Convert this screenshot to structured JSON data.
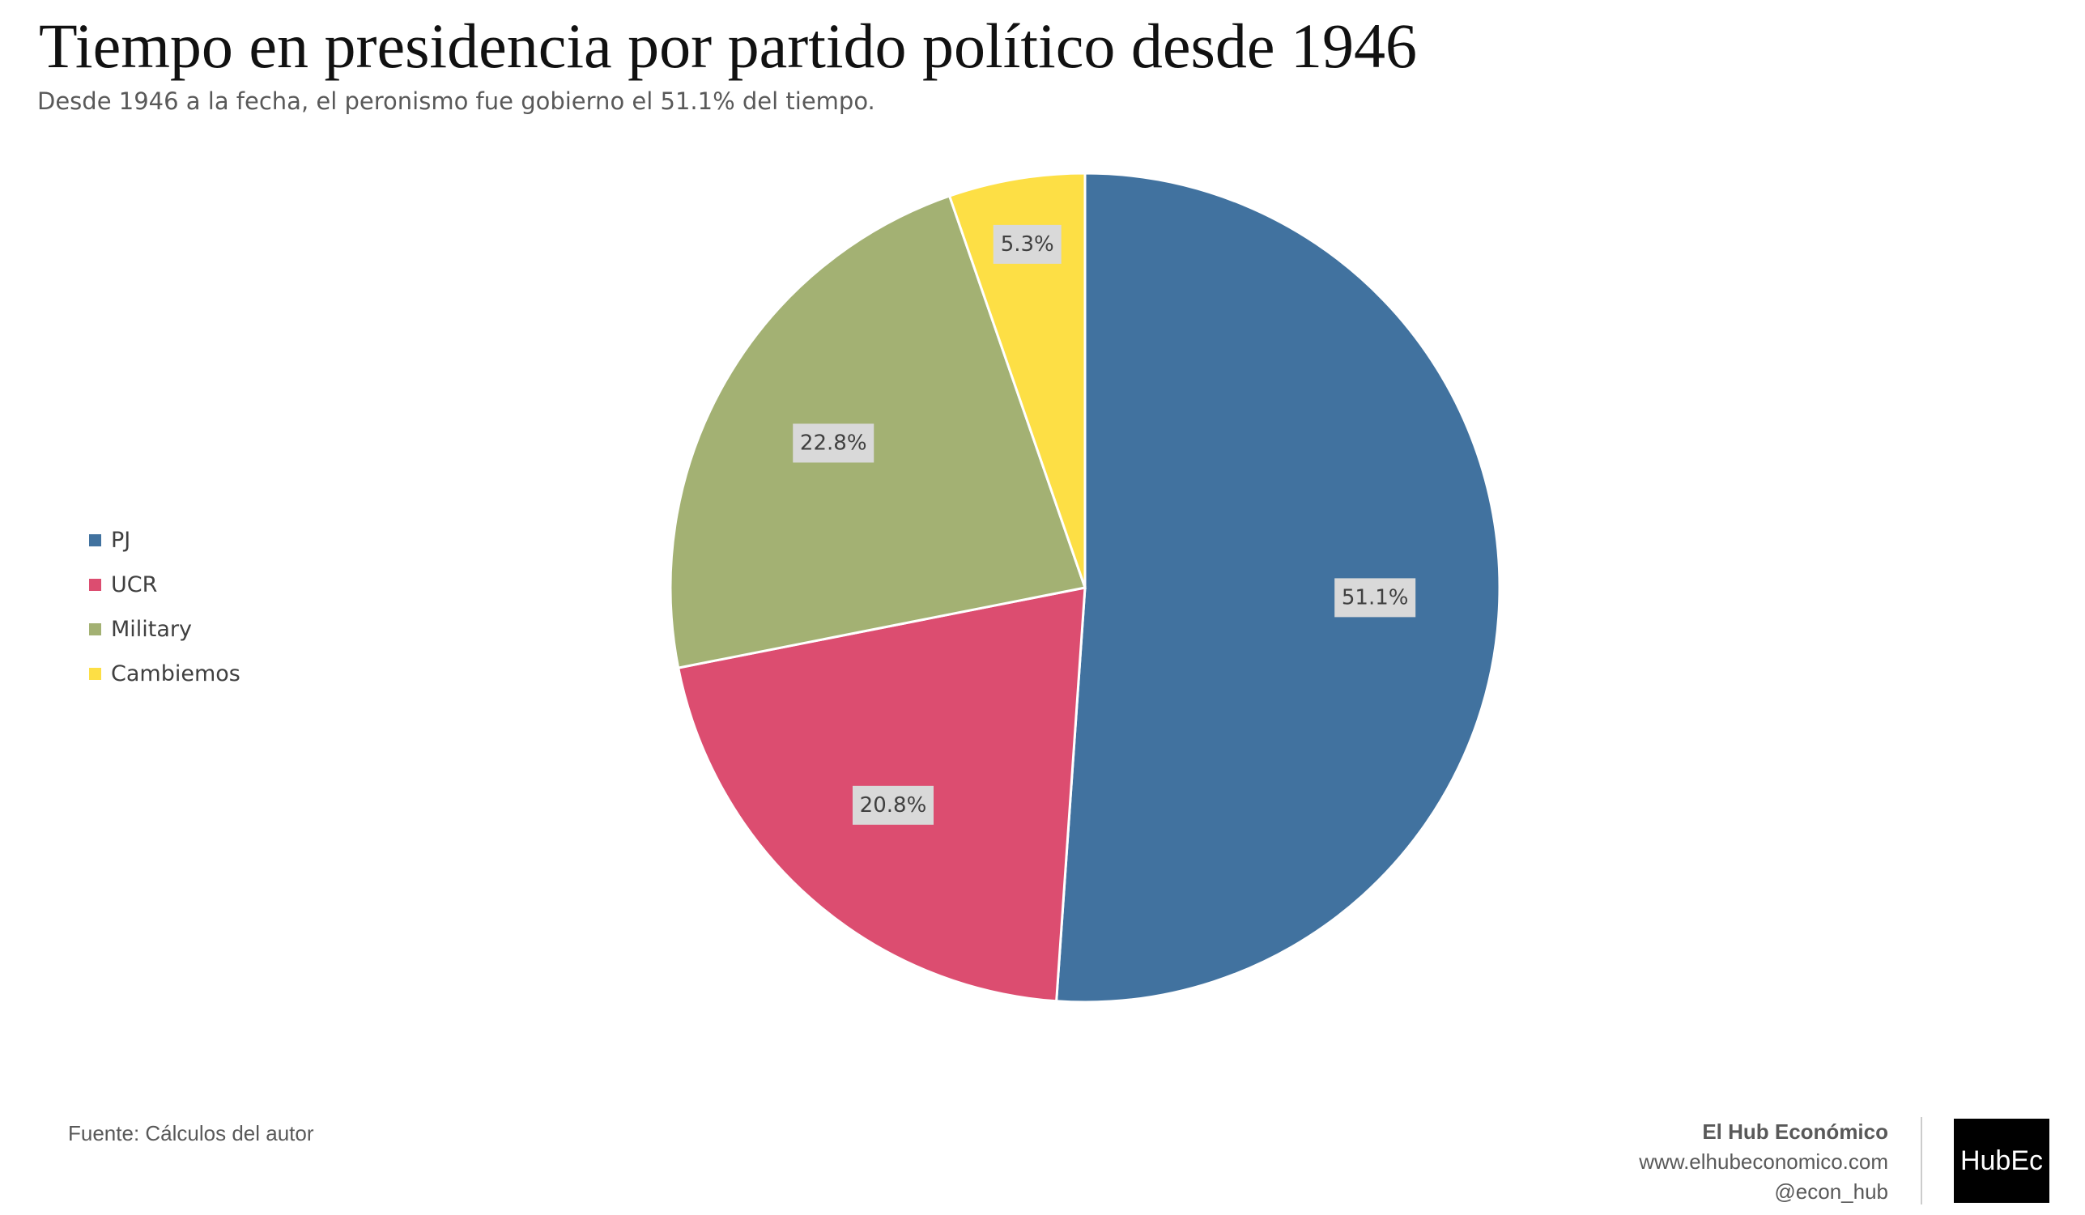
{
  "chart_data": {
    "type": "pie",
    "title": "Tiempo en presidencia por partido político desde 1946",
    "subtitle": "Desde 1946 a la fecha, el peronismo fue gobierno el 51.1% del tiempo.",
    "categories": [
      "PJ",
      "UCR",
      "Military",
      "Cambiemos"
    ],
    "values": [
      51.1,
      20.8,
      22.8,
      5.3
    ],
    "labels": [
      "51.1%",
      "20.8%",
      "22.8%",
      "5.3%"
    ],
    "colors": [
      "#41729F",
      "#DC4D70",
      "#A3B173",
      "#FDDF45"
    ],
    "legend_position": "left",
    "start_angle": "top, clockwise"
  },
  "footer": {
    "source": "Fuente: Cálculos del autor",
    "brand_name": "El Hub Económico",
    "website": "www.elhubeconomico.com",
    "handle": "@econ_hub",
    "logo_text": "HubEc"
  }
}
